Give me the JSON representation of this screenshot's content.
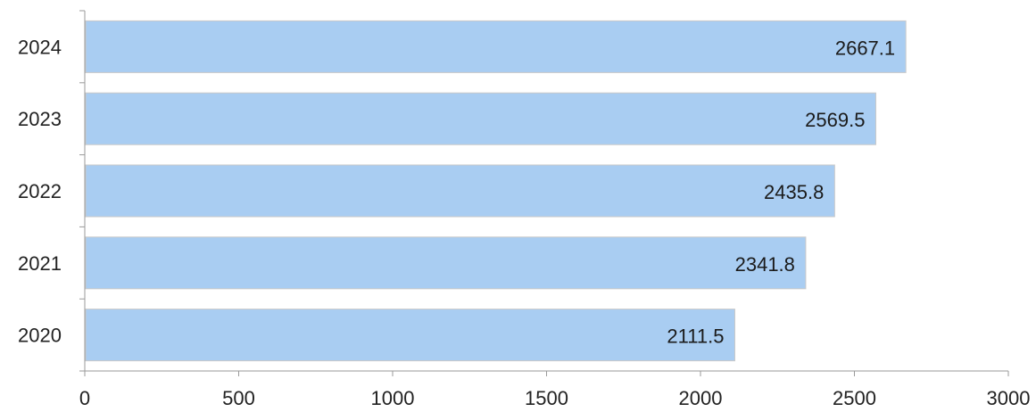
{
  "chart_data": {
    "type": "bar",
    "orientation": "horizontal",
    "categories": [
      "2024",
      "2023",
      "2022",
      "2021",
      "2020"
    ],
    "values": [
      2667.1,
      2569.5,
      2435.8,
      2341.8,
      2111.5
    ],
    "value_labels": [
      "2667.1",
      "2569.5",
      "2435.8",
      "2341.8",
      "2111.5"
    ],
    "xlim": [
      0,
      3000
    ],
    "x_ticks": [
      0,
      500,
      1000,
      1500,
      2000,
      2500,
      3000
    ],
    "x_tick_labels": [
      "0",
      "500",
      "1000",
      "1500",
      "2000",
      "2500",
      "3000"
    ],
    "title": "",
    "xlabel": "",
    "ylabel": "",
    "grid": false,
    "legend": "none",
    "colors": {
      "bar_fill": "#a9cdf2",
      "bar_edge": "#c9c9c9",
      "axis": "#9a9a9a",
      "text": "#222222"
    }
  }
}
